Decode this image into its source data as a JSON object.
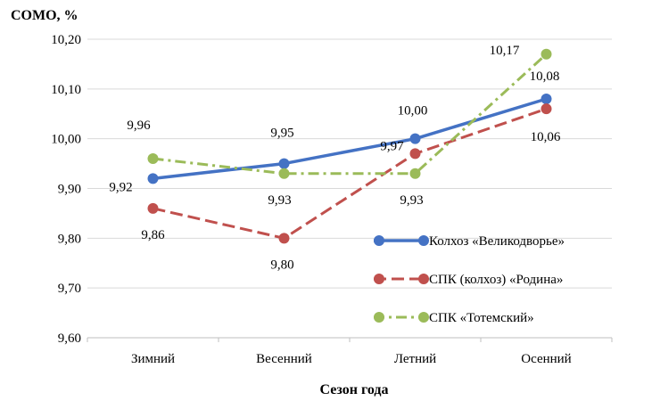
{
  "chart_data": {
    "type": "line",
    "title": "",
    "ylabel": "СОМО,  %",
    "xlabel": "Сезон  года",
    "categories": [
      "Зимний",
      "Весенний",
      "Летний",
      "Осенний"
    ],
    "ylim": [
      9.6,
      10.2
    ],
    "ytick_values": [
      9.6,
      9.7,
      9.8,
      9.9,
      10.0,
      10.1,
      10.2
    ],
    "ytick_labels": [
      "9,60",
      "9,70",
      "9,80",
      "9,90",
      "10,00",
      "10,10",
      "10,20"
    ],
    "grid": true,
    "legend_position": "right",
    "series": [
      {
        "name": "Колхоз  «Великодворье»",
        "values": [
          9.92,
          9.95,
          10.0,
          10.08
        ],
        "labels": [
          "9,92",
          "9,95",
          "10,00",
          "10,08"
        ],
        "color": "#4472c4",
        "line_style": "solid"
      },
      {
        "name": "СПК  (колхоз)  «Родина»",
        "values": [
          9.86,
          9.8,
          9.97,
          10.06
        ],
        "labels": [
          "9,86",
          "9,80",
          "9,97",
          "10,06"
        ],
        "color": "#c0504d",
        "line_style": "dashed"
      },
      {
        "name": "СПК  «Тотемский»",
        "values": [
          9.96,
          9.93,
          9.93,
          10.17
        ],
        "labels": [
          "9,96",
          "9,93",
          "9,93",
          "10,17"
        ],
        "color": "#9bbb59",
        "line_style": "dash-dot"
      }
    ]
  }
}
